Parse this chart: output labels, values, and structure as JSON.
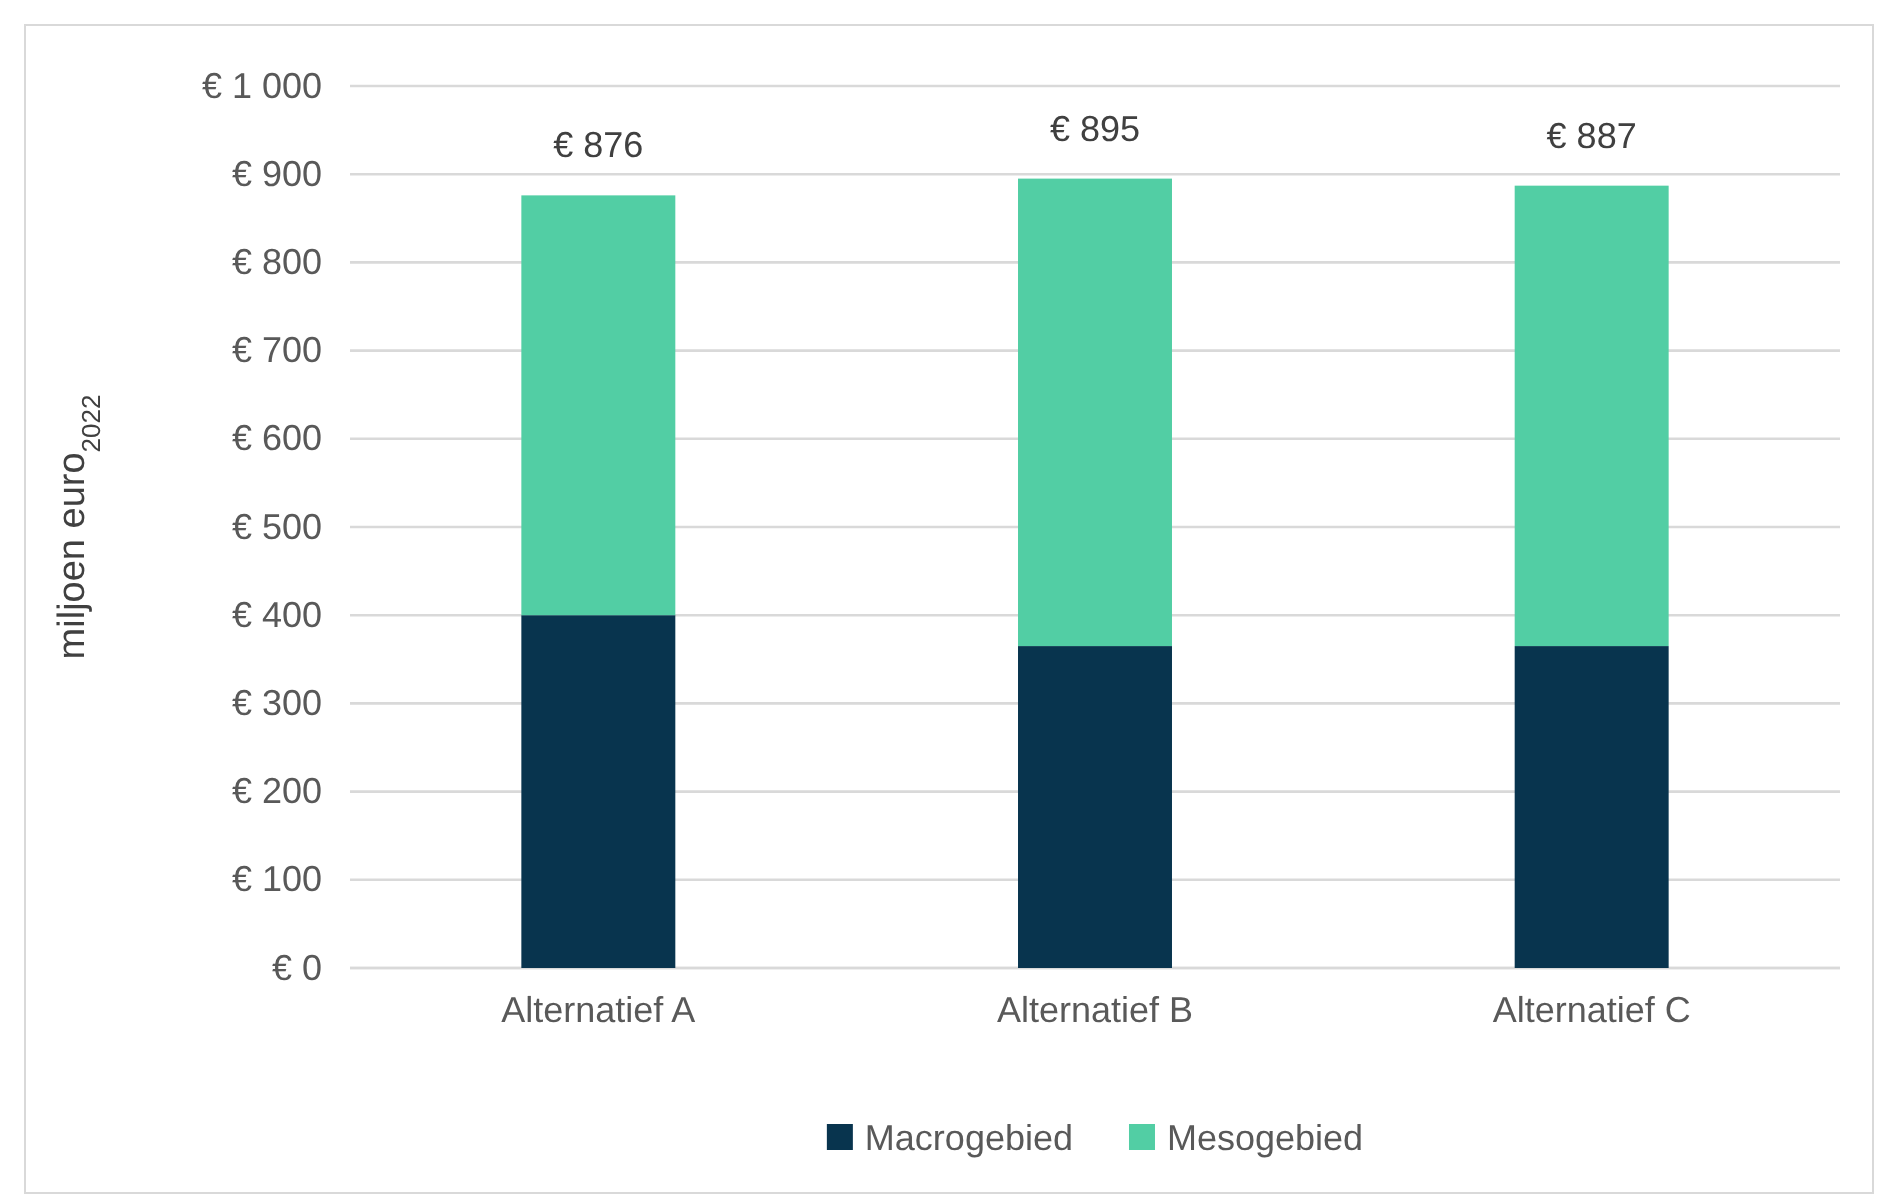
{
  "chart_data": {
    "type": "bar",
    "stacked": true,
    "ylabel": "miljoen euro$_{2022}$",
    "categories": [
      "Alternatief A",
      "Alternatief B",
      "Alternatief C"
    ],
    "series": [
      {
        "name": "Macrogebied",
        "color": "#08344e",
        "values": [
          400,
          365,
          365
        ]
      },
      {
        "name": "Mesogebied",
        "color": "#52cea4",
        "values": [
          476,
          530,
          522
        ]
      }
    ],
    "totals": [
      "€ 876",
      "€ 895",
      "€ 887"
    ],
    "ylim": [
      0,
      1000
    ],
    "yticks": [
      {
        "value": 0,
        "label": "€ 0"
      },
      {
        "value": 100,
        "label": "€ 100"
      },
      {
        "value": 200,
        "label": "€ 200"
      },
      {
        "value": 300,
        "label": "€ 300"
      },
      {
        "value": 400,
        "label": "€ 400"
      },
      {
        "value": 500,
        "label": "€ 500"
      },
      {
        "value": 600,
        "label": "€ 600"
      },
      {
        "value": 700,
        "label": "€ 700"
      },
      {
        "value": 800,
        "label": "€ 800"
      },
      {
        "value": 900,
        "label": "€ 900"
      },
      {
        "value": 1000,
        "label": "€ 1 000"
      }
    ],
    "grid": "y",
    "legend": "bottom"
  }
}
